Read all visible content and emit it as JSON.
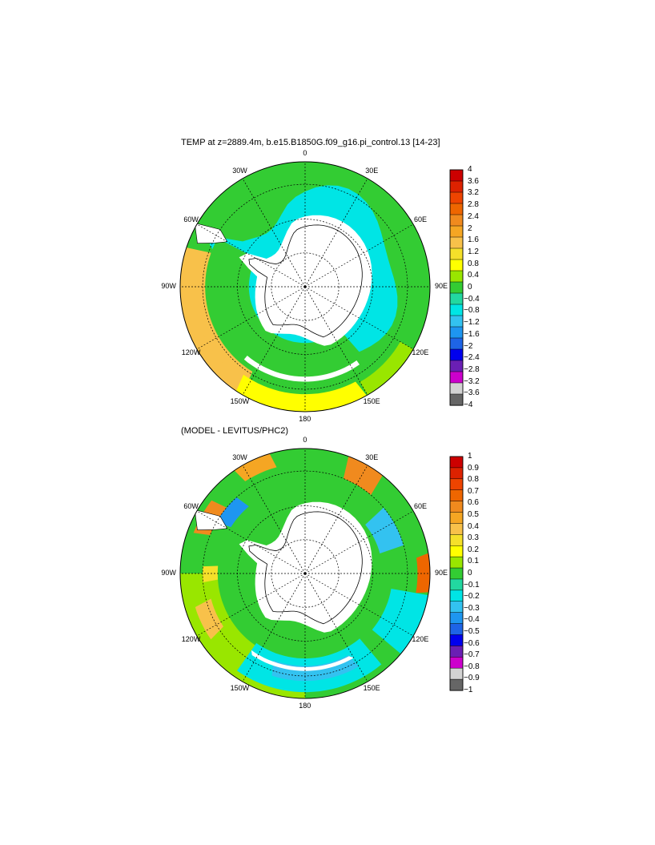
{
  "panels": [
    {
      "title": "TEMP at z=2889.4m, b.e15.B1850G.f09_g16.pi_control.13 [14-23]",
      "lon_labels": [
        "0",
        "30E",
        "60E",
        "90E",
        "120E",
        "150E",
        "180",
        "150W",
        "120W",
        "90W",
        "60W",
        "30W"
      ],
      "colorbar_labels": [
        "4",
        "3.6",
        "3.2",
        "2.8",
        "2.4",
        "2",
        "1.6",
        "1.2",
        "0.8",
        "0.4",
        "0",
        "−0.4",
        "−0.8",
        "−1.2",
        "−1.6",
        "−2",
        "−2.4",
        "−2.8",
        "−3.2",
        "−3.6",
        "−4"
      ]
    },
    {
      "title": "(MODEL - LEVITUS/PHC2)",
      "lon_labels": [
        "0",
        "30E",
        "60E",
        "90E",
        "120E",
        "150E",
        "180",
        "150W",
        "120W",
        "90W",
        "60W",
        "30W"
      ],
      "colorbar_labels": [
        "1",
        "0.9",
        "0.8",
        "0.7",
        "0.6",
        "0.5",
        "0.4",
        "0.3",
        "0.2",
        "0.1",
        "0",
        "−0.1",
        "−0.2",
        "−0.3",
        "−0.4",
        "−0.5",
        "−0.6",
        "−0.7",
        "−0.8",
        "−0.9",
        "−1"
      ]
    }
  ],
  "colors": {
    "palette": [
      "#cc0000",
      "#dd2200",
      "#ee4400",
      "#ee6600",
      "#f08a1e",
      "#f5a623",
      "#f8c14a",
      "#f5e02a",
      "#ffff00",
      "#99e600",
      "#33cc33",
      "#22d8a0",
      "#00e5e5",
      "#33c2f0",
      "#1e96f0",
      "#1e64e6",
      "#0000ee",
      "#6a1fb4",
      "#cc00cc",
      "#d3d3d3",
      "#666666"
    ],
    "land": "#ffffff",
    "ocean_fill_top": "#33cc33",
    "ocean_fill_bottom": "#33cc33"
  }
}
